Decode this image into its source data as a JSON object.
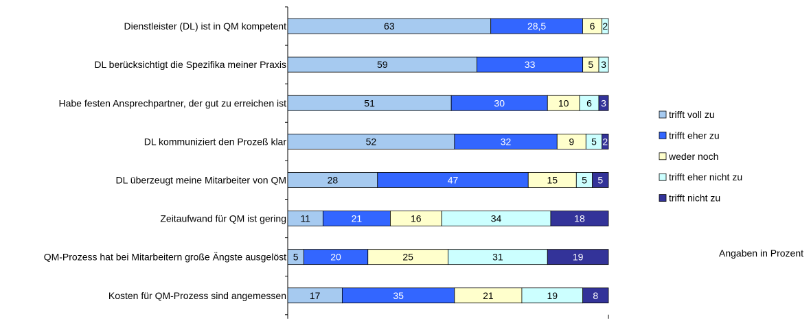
{
  "chart_data": {
    "type": "bar",
    "orientation": "horizontal",
    "stacked": true,
    "normalized": true,
    "categories": [
      "Dienstleister (DL) ist in QM kompetent",
      "DL berücksichtigt die Spezifika meiner Praxis",
      "Habe festen Ansprechpartner, der gut zu erreichen ist",
      "DL kommuniziert den Prozeß klar",
      "DL überzeugt meine Mitarbeiter von QM",
      "Zeitaufwand für QM ist gering",
      "QM-Prozess hat bei Mitarbeitern große Ängste ausgelöst",
      "Kosten für QM-Prozess sind angemessen"
    ],
    "series": [
      {
        "name": "trifft voll zu",
        "color": "#a6caf0",
        "label_color": "#000000",
        "values": [
          63,
          59,
          51,
          52,
          28,
          11,
          5,
          17
        ],
        "labels": [
          "63",
          "59",
          "51",
          "52",
          "28",
          "11",
          "5",
          "17"
        ]
      },
      {
        "name": "trifft eher zu",
        "color": "#3366ff",
        "label_color": "#ffffff",
        "values": [
          28.5,
          33,
          30,
          32,
          47,
          21,
          20,
          35
        ],
        "labels": [
          "28,5",
          "33",
          "30",
          "32",
          "47",
          "21",
          "20",
          "35"
        ]
      },
      {
        "name": "weder noch",
        "color": "#ffffcc",
        "label_color": "#000000",
        "values": [
          6,
          5,
          10,
          9,
          15,
          16,
          25,
          21
        ],
        "labels": [
          "6",
          "5",
          "10",
          "9",
          "15",
          "16",
          "25",
          "21"
        ]
      },
      {
        "name": "trifft eher nicht zu",
        "color": "#ccffff",
        "label_color": "#000000",
        "values": [
          2,
          3,
          6,
          5,
          5,
          34,
          31,
          19
        ],
        "labels": [
          "2",
          "3",
          "6",
          "5",
          "5",
          "34",
          "31",
          "19"
        ]
      },
      {
        "name": "trifft nicht zu",
        "color": "#333399",
        "label_color": "#ffffff",
        "values": [
          0,
          0,
          3,
          2,
          5,
          18,
          19,
          8
        ],
        "labels": [
          "",
          "",
          "3",
          "2",
          "5",
          "18",
          "19",
          "8"
        ]
      }
    ],
    "note": "Angaben in Prozent",
    "legend_position": "right",
    "grid": false
  }
}
